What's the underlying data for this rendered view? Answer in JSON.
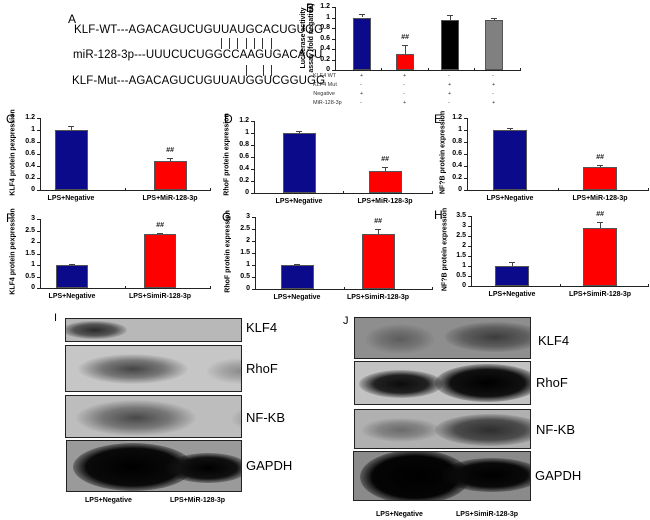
{
  "panel_a": {
    "letter": "A",
    "sequences": [
      {
        "label": "KLF-WT---AGACAGUCUGUUAUGCACUGUGG"
      },
      {
        "label": "miR-128-3p---UUUCUCUGGCCAAGUGACACU"
      },
      {
        "label": "KLF-Mut---AGACAGUCUGUUAUGGUCGGUGG"
      }
    ]
  },
  "panel_b": {
    "letter": "B",
    "table_rows": [
      {
        "label": "KLF4 WT",
        "values": [
          "+",
          "+",
          "-",
          "-"
        ]
      },
      {
        "label": "KLF4 Mut",
        "values": [
          "-",
          "-",
          "+",
          "+"
        ]
      },
      {
        "label": "Negative",
        "values": [
          "+",
          "-",
          "+",
          "-"
        ]
      },
      {
        "label": "MiR-128-3p",
        "values": [
          "-",
          "+",
          "-",
          "+"
        ]
      }
    ]
  },
  "blots": {
    "I": {
      "letter": "I",
      "rows": [
        "KLF4",
        "RhoF",
        "NF-KB",
        "GAPDH"
      ],
      "lanes": [
        "LPS+Negative",
        "LPS+MiR-128-3p"
      ]
    },
    "J": {
      "letter": "J",
      "rows": [
        "KLF4",
        "RhoF",
        "NF-KB",
        "GAPDH"
      ],
      "lanes": [
        "LPS+Negative",
        "LPS+SimiR-128-3p"
      ]
    }
  },
  "colors": {
    "blue": "#0a0a8a",
    "red": "#ff0000",
    "black": "#000000",
    "gray": "#808080"
  },
  "chart_data": [
    {
      "panel": "B",
      "type": "bar",
      "title": "",
      "ylabel": "Luciferase activity assay (fold negative)",
      "xlabel": "",
      "categories": [
        "KLF4 WT + Negative",
        "KLF4 WT + MiR-128-3p",
        "KLF4 Mut + Negative",
        "KLF4 Mut + MiR-128-3p"
      ],
      "values": [
        1.0,
        0.31,
        0.96,
        0.96
      ],
      "errors": [
        0.06,
        0.16,
        0.09,
        0.04
      ],
      "colors": [
        "#0a0a8a",
        "#ff0000",
        "#000000",
        "#808080"
      ],
      "annotations": [
        {
          "index": 1,
          "text": "##"
        }
      ],
      "ylim": [
        0,
        1.2
      ],
      "yticks": [
        "0",
        "0.2",
        "0.4",
        "0.6",
        "0.8",
        "1",
        "1.2"
      ],
      "grid": false
    },
    {
      "panel": "C",
      "type": "bar",
      "ylabel": "KLF4 protein pexpression",
      "categories": [
        "LPS+Negative",
        "LPS+MiR-128-3p"
      ],
      "values": [
        1.0,
        0.48
      ],
      "errors": [
        0.07,
        0.06
      ],
      "colors": [
        "#0a0a8a",
        "#ff0000"
      ],
      "annotations": [
        {
          "index": 1,
          "text": "##"
        }
      ],
      "ylim": [
        0,
        1.2
      ],
      "yticks": [
        "0",
        "0.2",
        "0.4",
        "0.6",
        "0.8",
        "1",
        "1.2"
      ],
      "grid": false
    },
    {
      "panel": "D",
      "type": "bar",
      "ylabel": "RhoF protein expression",
      "categories": [
        "LPS+Negative",
        "LPS+MiR-128-3p"
      ],
      "values": [
        1.0,
        0.36
      ],
      "errors": [
        0.03,
        0.07
      ],
      "colors": [
        "#0a0a8a",
        "#ff0000"
      ],
      "annotations": [
        {
          "index": 1,
          "text": "##"
        }
      ],
      "ylim": [
        0,
        1.2
      ],
      "yticks": [
        "0",
        "0.2",
        "0.4",
        "0.6",
        "0.8",
        "1",
        "1.2"
      ],
      "grid": false
    },
    {
      "panel": "E",
      "type": "bar",
      "ylabel": "NF?B protein expression",
      "categories": [
        "LPS+Negative",
        "LPS+MiR-128-3p"
      ],
      "values": [
        1.0,
        0.39
      ],
      "errors": [
        0.03,
        0.03
      ],
      "colors": [
        "#0a0a8a",
        "#ff0000"
      ],
      "annotations": [
        {
          "index": 1,
          "text": "##"
        }
      ],
      "ylim": [
        0,
        1.2
      ],
      "yticks": [
        "0",
        "0.2",
        "0.4",
        "0.6",
        "0.8",
        "1",
        "1.2"
      ],
      "grid": false
    },
    {
      "panel": "F",
      "type": "bar",
      "ylabel": "KLF4 protein pexpression",
      "categories": [
        "LPS+Negative",
        "LPS+SimiR-128-3p"
      ],
      "values": [
        1.0,
        2.35
      ],
      "errors": [
        0.05,
        0.05
      ],
      "colors": [
        "#0a0a8a",
        "#ff0000"
      ],
      "annotations": [
        {
          "index": 1,
          "text": "##"
        }
      ],
      "ylim": [
        0,
        3
      ],
      "yticks": [
        "0",
        "0.5",
        "1",
        "1.5",
        "2",
        "2.5",
        "3"
      ],
      "grid": false
    },
    {
      "panel": "G",
      "type": "bar",
      "ylabel": "RhoF protein expression",
      "categories": [
        "LPS+Negative",
        "LPS+SimiR-128-3p"
      ],
      "values": [
        1.0,
        2.3
      ],
      "errors": [
        0.06,
        0.18
      ],
      "colors": [
        "#0a0a8a",
        "#ff0000"
      ],
      "annotations": [
        {
          "index": 1,
          "text": "##"
        }
      ],
      "ylim": [
        0,
        3
      ],
      "yticks": [
        "0",
        "0.5",
        "1",
        "1.5",
        "2",
        "2.5",
        "3"
      ],
      "grid": false
    },
    {
      "panel": "H",
      "type": "bar",
      "ylabel": "NF?B protein expression",
      "categories": [
        "LPS+Negative",
        "LPS+SimiR-128-3p"
      ],
      "values": [
        1.0,
        2.92
      ],
      "errors": [
        0.18,
        0.28
      ],
      "colors": [
        "#0a0a8a",
        "#ff0000"
      ],
      "annotations": [
        {
          "index": 1,
          "text": "##"
        }
      ],
      "ylim": [
        0,
        3.5
      ],
      "yticks": [
        "0",
        "0.5",
        "1",
        "1.5",
        "2",
        "2.5",
        "3",
        "3.5"
      ],
      "grid": false
    }
  ]
}
